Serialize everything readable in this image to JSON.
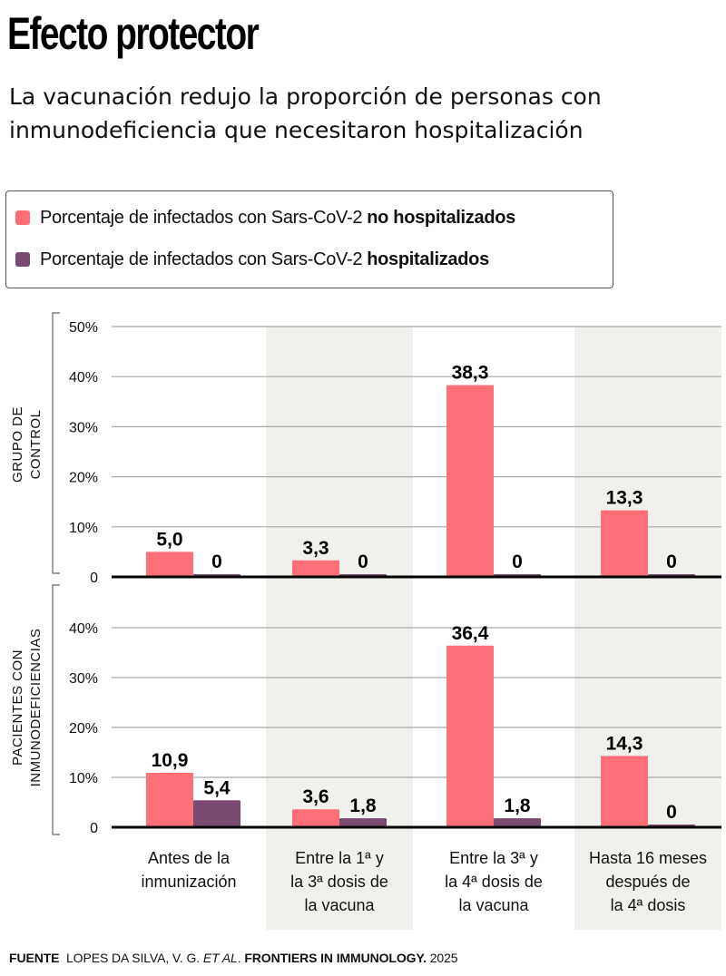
{
  "title": "Efecto protector",
  "subtitle": "La vacunación redujo la proporción de personas con inmunodeficiencia que necesitaron hospitalización",
  "legend": {
    "items": [
      {
        "prefix": "Porcentaje de infectados con Sars-CoV-2",
        "bold": "no hospitalizados",
        "color": "#ff6f77"
      },
      {
        "prefix": "Porcentaje de infectados con Sars-CoV-2",
        "bold": "hospitalizados",
        "color": "#7b4a70"
      }
    ]
  },
  "source": {
    "label": "FUENTE",
    "authors": "LOPES DA SILVA, V. G.",
    "etal": "ET AL",
    "dot": ".",
    "journal": "FRONTIERS IN IMMUNOLOGY.",
    "year": "2025"
  },
  "colors": {
    "no_hospitalizados": "#ff6f77",
    "hospitalizados": "#7b4a70",
    "band": "#f0f0ec",
    "grid": "#a9a9a9",
    "baseline": "#000000"
  },
  "chart_data": [
    {
      "type": "bar",
      "panel": "top",
      "group_label": [
        "GRUPO DE",
        "CONTROL"
      ],
      "categories": [
        "Antes de la inmunización",
        "Entre la 1ª y la 3ª dosis de la vacuna",
        "Entre la 3ª y la 4ª dosis de la vacuna",
        "Hasta 16 meses después de la 4ª dosis"
      ],
      "series": [
        {
          "name": "Porcentaje de infectados con Sars-CoV-2 no hospitalizados",
          "values": [
            5.0,
            3.3,
            38.3,
            13.3
          ],
          "labels": [
            "5,0",
            "3,3",
            "38,3",
            "13,3"
          ]
        },
        {
          "name": "Porcentaje de infectados con Sars-CoV-2 hospitalizados",
          "values": [
            0,
            0,
            0,
            0
          ],
          "labels": [
            "0",
            "0",
            "0",
            "0"
          ]
        }
      ],
      "ylim": [
        0,
        50
      ],
      "yticks": [
        0,
        10,
        20,
        30,
        40,
        50
      ],
      "ytick_labels": [
        "0",
        "10%",
        "20%",
        "30%",
        "40%",
        "50%"
      ],
      "grid": true
    },
    {
      "type": "bar",
      "panel": "bottom",
      "group_label": [
        "PACIENTES CON",
        "INMUNODEFICIENCIAS"
      ],
      "categories": [
        "Antes de la inmunización",
        "Entre la 1ª y la 3ª dosis de la vacuna",
        "Entre la 3ª y la 4ª dosis de la vacuna",
        "Hasta 16 meses después de la 4ª dosis"
      ],
      "series": [
        {
          "name": "Porcentaje de infectados con Sars-CoV-2 no hospitalizados",
          "values": [
            10.9,
            3.6,
            36.4,
            14.3
          ],
          "labels": [
            "10,9",
            "3,6",
            "36,4",
            "14,3"
          ]
        },
        {
          "name": "Porcentaje de infectados con Sars-CoV-2 hospitalizados",
          "values": [
            5.4,
            1.8,
            1.8,
            0
          ],
          "labels": [
            "5,4",
            "1,8",
            "1,8",
            "0"
          ]
        }
      ],
      "ylim": [
        0,
        40
      ],
      "yticks": [
        0,
        10,
        20,
        30,
        40
      ],
      "ytick_labels": [
        "0",
        "10%",
        "20%",
        "30%",
        "40%"
      ],
      "grid": true
    }
  ],
  "category_labels": [
    [
      "Antes de la",
      "inmunización"
    ],
    [
      "Entre la 1ª y",
      "la 3ª dosis de",
      "la vacuna"
    ],
    [
      "Entre la 3ª y",
      "la 4ª dosis de",
      "la vacuna"
    ],
    [
      "Hasta 16 meses",
      "después de",
      "la 4ª dosis"
    ]
  ]
}
